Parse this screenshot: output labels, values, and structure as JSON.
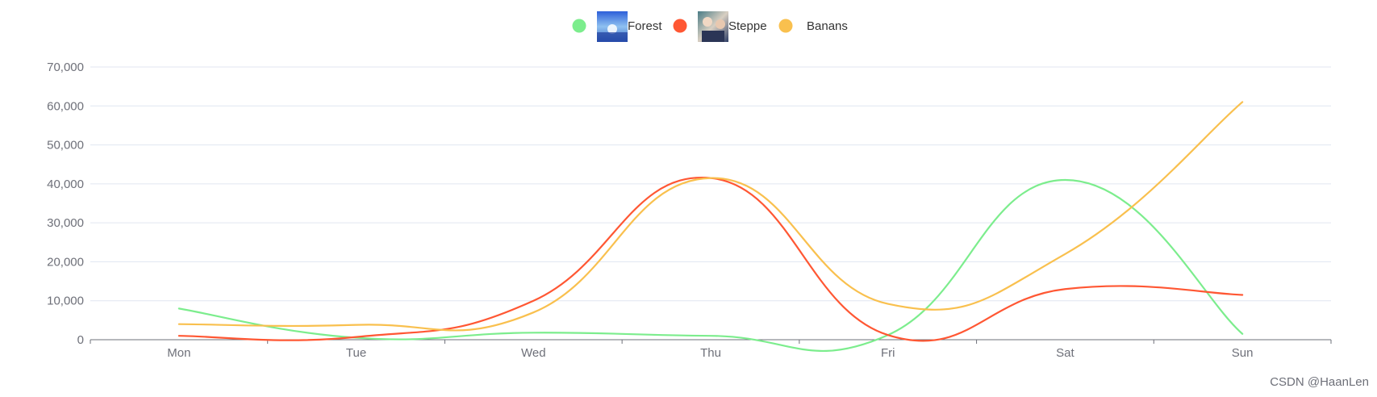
{
  "chart_data": {
    "type": "line",
    "smooth": true,
    "categories": [
      "Mon",
      "Tue",
      "Wed",
      "Thu",
      "Fri",
      "Sat",
      "Sun"
    ],
    "series": [
      {
        "name": "Forest",
        "color": "#7ced8d",
        "legend_image": "sky-photo-icon",
        "values": [
          8000,
          500,
          1800,
          1000,
          1200,
          41000,
          1500
        ]
      },
      {
        "name": "Steppe",
        "color": "#ff5733",
        "legend_image": "anime-characters-icon",
        "values": [
          1000,
          700,
          10000,
          41500,
          1200,
          13000,
          11500
        ]
      },
      {
        "name": "Banans",
        "color": "#f9c04e",
        "values": [
          4000,
          3800,
          7000,
          41500,
          9200,
          22000,
          61000
        ]
      }
    ],
    "yticks": [
      0,
      10000,
      20000,
      30000,
      40000,
      50000,
      60000,
      70000
    ],
    "ytick_labels": [
      "0",
      "10,000",
      "20,000",
      "30,000",
      "40,000",
      "50,000",
      "60,000",
      "70,000"
    ],
    "ylim": [
      0,
      70000
    ],
    "grid": true,
    "legend_position": "top-center"
  },
  "watermark": "CSDN @HaanLen"
}
